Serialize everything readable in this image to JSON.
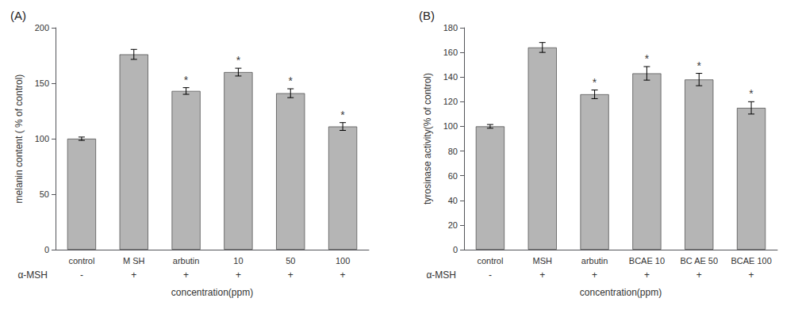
{
  "chart_data": [
    {
      "type": "bar",
      "title": "(A)",
      "categories": [
        "control",
        "M SH",
        "arbutin",
        "10",
        "50",
        "100"
      ],
      "values": [
        100,
        176,
        143,
        160,
        141,
        111
      ],
      "errors": [
        1.5,
        4.5,
        3.0,
        3.5,
        4.0,
        3.5
      ],
      "annotations": [
        {
          "category": "arbutin",
          "text": "*"
        },
        {
          "category": "10",
          "text": "*"
        },
        {
          "category": "50",
          "text": "*"
        },
        {
          "category": "100",
          "text": "*"
        }
      ],
      "category_row": {
        "label": "α-MSH",
        "values": [
          "-",
          "+",
          "+",
          "+",
          "+",
          "+"
        ]
      },
      "ylabel": "melanin content ( % of control)",
      "xlabel": "concentration(ppm)",
      "color": "#b5b5b5",
      "ylim": [
        0,
        200
      ],
      "yticks": [
        0,
        50,
        100,
        150,
        200
      ],
      "grid": false
    },
    {
      "type": "bar",
      "title": "(B)",
      "categories": [
        "control",
        "MSH",
        "arbutin",
        "BCAE 10",
        "BC AE 50",
        "BCAE 100"
      ],
      "values": [
        100,
        164,
        126,
        143,
        138,
        115
      ],
      "errors": [
        1.5,
        4.0,
        3.5,
        5.5,
        5.0,
        5.0
      ],
      "annotations": [
        {
          "category": "arbutin",
          "text": "*"
        },
        {
          "category": "BCAE 10",
          "text": "*"
        },
        {
          "category": "BC AE 50",
          "text": "*"
        },
        {
          "category": "BCAE 100",
          "text": "*"
        }
      ],
      "category_row": {
        "label": "α-MSH",
        "values": [
          "-",
          "+",
          "+",
          "+",
          "+",
          "+"
        ]
      },
      "ylabel": "tyrosinase activity(% of control)",
      "xlabel": "concentration(ppm)",
      "color": "#b5b5b5",
      "ylim": [
        0,
        180
      ],
      "yticks": [
        0,
        20,
        40,
        60,
        80,
        100,
        120,
        140,
        160,
        180
      ],
      "grid": false
    }
  ]
}
